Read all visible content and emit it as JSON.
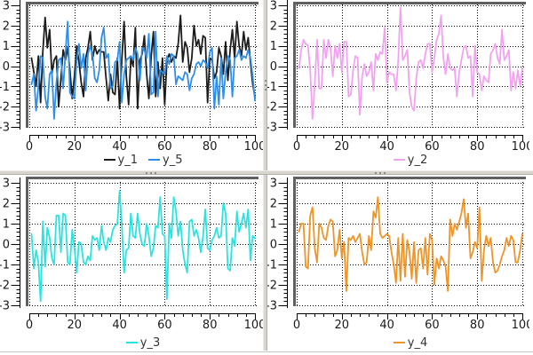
{
  "ui": {
    "background": "#ffffff",
    "plot_border_color": "#606060",
    "grid_color": "#000000",
    "axis_color": "#000000",
    "tick_label_color": "#1a1a1a",
    "legend_text_color": "#333333",
    "splitter_color": "#d8d5cf",
    "splitter_dot_color": "#8c8c8c"
  },
  "x_values": [
    1,
    2,
    3,
    4,
    5,
    6,
    7,
    8,
    9,
    10,
    11,
    12,
    13,
    14,
    15,
    16,
    17,
    18,
    19,
    20,
    21,
    22,
    23,
    24,
    25,
    26,
    27,
    28,
    29,
    30,
    31,
    32,
    33,
    34,
    35,
    36,
    37,
    38,
    39,
    40,
    41,
    42,
    43,
    44,
    45,
    46,
    47,
    48,
    49,
    50,
    51,
    52,
    53,
    54,
    55,
    56,
    57,
    58,
    59,
    60,
    61,
    62,
    63,
    64,
    65,
    66,
    67,
    68,
    69,
    70,
    71,
    72,
    73,
    74,
    75,
    76,
    77,
    78,
    79,
    80,
    81,
    82,
    83,
    84,
    85,
    86,
    87,
    88,
    89,
    90,
    91,
    92,
    93,
    94,
    95,
    96,
    97,
    98,
    99,
    100
  ],
  "chart_data": [
    {
      "type": "line",
      "panel": "top-left",
      "x_range": [
        0,
        100
      ],
      "y_range": [
        -3,
        3
      ],
      "xtick_labels": [
        "0",
        "20",
        "40",
        "60",
        "80",
        "100"
      ],
      "xticks": [
        0,
        20,
        40,
        60,
        80,
        100
      ],
      "ytick_labels": [
        "3",
        "2",
        "1",
        "0",
        "-1",
        "-2",
        "-3"
      ],
      "yticks": [
        3,
        2,
        1,
        0,
        -1,
        -2,
        -3
      ],
      "x_minor_step": 4,
      "y_minor_step": 0.2,
      "grid": "dotted",
      "legend_position": "bottom-center",
      "series": [
        {
          "name": "y_1",
          "color": "#1c1c1c",
          "values": [
            0.4,
            -0.3,
            -1.0,
            0.5,
            -1.8,
            0.7,
            2.4,
            0.9,
            1.8,
            -0.4,
            0.3,
            0.5,
            -2.0,
            -0.6,
            0.8,
            0.3,
            0.9,
            -0.2,
            -1.6,
            -0.5,
            1.0,
            0.2,
            -0.8,
            -1.5,
            0.4,
            0.9,
            1.7,
            0.3,
            1.0,
            0.6,
            0.8,
            0.7,
            0.7,
            -0.6,
            -1.7,
            -0.4,
            -1.3,
            -1.4,
            0.4,
            -2.1,
            0.3,
            2.2,
            -0.5,
            -1.9,
            0.4,
            0.0,
            1.9,
            -2.1,
            0.3,
            0.6,
            1.5,
            -0.4,
            -1.6,
            0.5,
            1.7,
            -1.5,
            0.2,
            -1.1,
            0.4,
            -1.9,
            0.3,
            0.6,
            0.2,
            0.5,
            0.4,
            1.1,
            2.5,
            0.2,
            1.2,
            0.9,
            -0.3,
            0.4,
            2.0,
            1.0,
            1.3,
            0.6,
            1.5,
            1.4,
            -1.8,
            0.4,
            0.3,
            -0.6,
            -0.3,
            0.9,
            0.5,
            -0.4,
            1.2,
            -0.7,
            0.8,
            1.8,
            0.4,
            2.2,
            1.0,
            0.5,
            1.7,
            0.8,
            1.4,
            0.2,
            -0.9,
            -1.5
          ]
        },
        {
          "name": "y_5",
          "color": "#2e8fe8",
          "values": [
            -0.9,
            -0.4,
            -2.2,
            -1.0,
            0.5,
            0.4,
            -1.5,
            -2.1,
            -0.4,
            -0.2,
            -2.6,
            -0.8,
            0.3,
            0.4,
            -1.1,
            0.6,
            2.2,
            -1.3,
            -1.5,
            -1.6,
            0.3,
            1.1,
            -0.1,
            0.6,
            -1.2,
            0.6,
            1.0,
            0.6,
            -0.6,
            -0.8,
            -0.2,
            1.4,
            1.9,
            0.4,
            0.6,
            -1.1,
            -1.0,
            0.2,
            0.3,
            1.2,
            -1.8,
            -0.4,
            0.3,
            0.4,
            0.5,
            0.3,
            0.9,
            0.6,
            -0.7,
            0.9,
            0.8,
            0.4,
            1.6,
            -1.4,
            -1.3,
            1.7,
            -1.5,
            -0.2,
            -0.3,
            -0.4,
            0.5,
            0.1,
            0.6,
            0.5,
            -0.9,
            -0.5,
            -0.6,
            -0.7,
            -0.3,
            -0.4,
            -1.2,
            -0.6,
            -0.4,
            0.1,
            0.2,
            0.0,
            0.3,
            0.2,
            -0.1,
            0.7,
            0.9,
            -2.1,
            -0.5,
            -1.9,
            0.4,
            -1.6,
            -0.3,
            0.5,
            0.3,
            -1.5,
            0.4,
            0.5,
            0.8,
            0.3,
            0.5,
            0.4,
            0.8,
            0.4,
            -0.5,
            -1.7
          ]
        }
      ]
    },
    {
      "type": "line",
      "panel": "top-right",
      "x_range": [
        0,
        100
      ],
      "y_range": [
        -3,
        3
      ],
      "xtick_labels": [
        "0",
        "20",
        "40",
        "60",
        "80",
        "100"
      ],
      "xticks": [
        0,
        20,
        40,
        60,
        80,
        100
      ],
      "ytick_labels": [
        "3",
        "2",
        "1",
        "0",
        "-1",
        "-2",
        "-3"
      ],
      "yticks": [
        3,
        2,
        1,
        0,
        -1,
        -2,
        -3
      ],
      "x_minor_step": 4,
      "y_minor_step": 0.2,
      "grid": "dotted",
      "legend_position": "bottom-center",
      "series": [
        {
          "name": "y_2",
          "color": "#f2a2f0",
          "values": [
            -0.1,
            0.8,
            1.3,
            1.1,
            1.0,
            -0.2,
            -2.6,
            -0.9,
            1.3,
            -1.1,
            -1.1,
            1.3,
            0.4,
            1.3,
            0.9,
            -0.5,
            1.0,
            0.4,
            1.1,
            -0.3,
            1.2,
            1.2,
            -1.5,
            -1.4,
            -0.2,
            0.5,
            0.4,
            -2.4,
            -0.5,
            0.1,
            -0.5,
            -0.3,
            0.2,
            -1.2,
            0.6,
            0.3,
            0.7,
            0.6,
            1.9,
            -0.8,
            -0.3,
            -0.4,
            -0.4,
            -1.2,
            0.3,
            2.9,
            0.3,
            0.5,
            0.8,
            -1.3,
            -2.0,
            -2.2,
            -0.6,
            0.2,
            0.3,
            -0.1,
            0.6,
            1.1,
            1.1,
            -0.3,
            0.4,
            1.3,
            1.6,
            2.5,
            0.4,
            -0.4,
            0.6,
            -0.1,
            -0.2,
            -0.1,
            -1.5,
            -0.3,
            0.3,
            0.9,
            1.0,
            0.4,
            0.5,
            -1.5,
            1.0,
            -0.3,
            -0.4,
            -1.2,
            -0.5,
            -0.7,
            -0.8,
            0.6,
            0.8,
            1.1,
            0.4,
            0.1,
            1.8,
            0.3,
            0.5,
            0.8,
            -1.2,
            -0.3,
            -1.1,
            -0.2,
            -1.0,
            -0.1
          ]
        }
      ]
    },
    {
      "type": "line",
      "panel": "bottom-left",
      "x_range": [
        0,
        100
      ],
      "y_range": [
        -3,
        3
      ],
      "xtick_labels": [
        "0",
        "20",
        "40",
        "60",
        "80",
        "100"
      ],
      "xticks": [
        0,
        20,
        40,
        60,
        80,
        100
      ],
      "ytick_labels": [
        "3",
        "2",
        "1",
        "0",
        "-1",
        "-2",
        "-3"
      ],
      "yticks": [
        3,
        2,
        1,
        0,
        -1,
        -2,
        -3
      ],
      "x_minor_step": 4,
      "y_minor_step": 0.2,
      "grid": "dotted",
      "legend_position": "bottom-center",
      "series": [
        {
          "name": "y_3",
          "color": "#2be4e0",
          "values": [
            0.5,
            -1.2,
            -0.3,
            -0.9,
            -2.8,
            1.1,
            -1.1,
            0.8,
            0.3,
            -0.7,
            -1.0,
            1.4,
            1.4,
            -0.4,
            1.5,
            1.4,
            -0.9,
            -1.0,
            0.7,
            -0.2,
            -1.4,
            0.1,
            0.0,
            -0.9,
            -1.0,
            -0.6,
            -0.8,
            0.4,
            0.2,
            0.3,
            -0.3,
            0.9,
            0.1,
            -0.3,
            0.3,
            0.1,
            0.7,
            0.9,
            1.0,
            2.6,
            1.0,
            -1.4,
            -0.3,
            -0.2,
            1.5,
            0.4,
            0.3,
            1.5,
            0.5,
            0.0,
            -0.1,
            1.0,
            0.4,
            -0.6,
            -0.2,
            0.9,
            0.8,
            2.3,
            0.5,
            0.4,
            -2.7,
            1.0,
            0.3,
            2.3,
            1.6,
            0.4,
            1.1,
            -0.3,
            -1.0,
            -1.4,
            1.1,
            1.2,
            0.4,
            0.7,
            0.3,
            -0.4,
            0.4,
            1.7,
            -0.2,
            -0.3,
            0.2,
            0.4,
            0.8,
            0.3,
            0.4,
            2.0,
            1.5,
            -1.2,
            -1.3,
            0.3,
            -0.1,
            1.6,
            0.6,
            1.0,
            1.5,
            0.8,
            1.7,
            -0.8,
            0.4,
            0.3
          ]
        }
      ]
    },
    {
      "type": "line",
      "panel": "bottom-right",
      "x_range": [
        0,
        100
      ],
      "y_range": [
        -3,
        3
      ],
      "xtick_labels": [
        "0",
        "20",
        "40",
        "60",
        "80",
        "100"
      ],
      "xticks": [
        0,
        20,
        40,
        60,
        80,
        100
      ],
      "ytick_labels": [
        "3",
        "2",
        "1",
        "0",
        "-1",
        "-2",
        "-3"
      ],
      "yticks": [
        3,
        2,
        1,
        0,
        -1,
        -2,
        -3
      ],
      "x_minor_step": 4,
      "y_minor_step": 0.2,
      "grid": "dotted",
      "legend_position": "bottom-center",
      "series": [
        {
          "name": "y_4",
          "color": "#ee9428",
          "values": [
            0.6,
            1.0,
            1.0,
            -1.1,
            -1.2,
            1.4,
            1.8,
            -0.2,
            -0.9,
            1.0,
            0.8,
            0.3,
            0.2,
            0.9,
            1.2,
            1.1,
            -0.6,
            -0.3,
            0.7,
            -0.7,
            0.1,
            -2.3,
            0.3,
            0.2,
            0.4,
            0.1,
            0.3,
            0.5,
            -0.4,
            -1.0,
            -0.9,
            0.4,
            -0.3,
            1.6,
            1.3,
            2.3,
            0.5,
            0.3,
            0.4,
            0.5,
            0.4,
            -0.4,
            -1.0,
            -1.9,
            0.3,
            -1.8,
            0.5,
            -1.6,
            0.2,
            -0.4,
            -1.7,
            0.1,
            -1.9,
            -0.3,
            -0.2,
            -1.2,
            0.3,
            -1.5,
            0.5,
            0.2,
            -2.0,
            -0.7,
            -1.2,
            -0.6,
            -0.8,
            -1.1,
            -2.3,
            1.2,
            0.4,
            1.0,
            0.7,
            1.1,
            1.5,
            2.2,
            0.8,
            1.5,
            -0.7,
            -0.4,
            0.1,
            -0.2,
            1.8,
            -1.8,
            -0.3,
            0.4,
            -0.1,
            0.3,
            -0.9,
            -1.4,
            -1.3,
            -1.0,
            -0.6,
            -0.3,
            0.3,
            -0.1,
            0.4,
            0.2,
            -0.9,
            -0.9,
            -0.3,
            0.5
          ]
        }
      ]
    }
  ]
}
